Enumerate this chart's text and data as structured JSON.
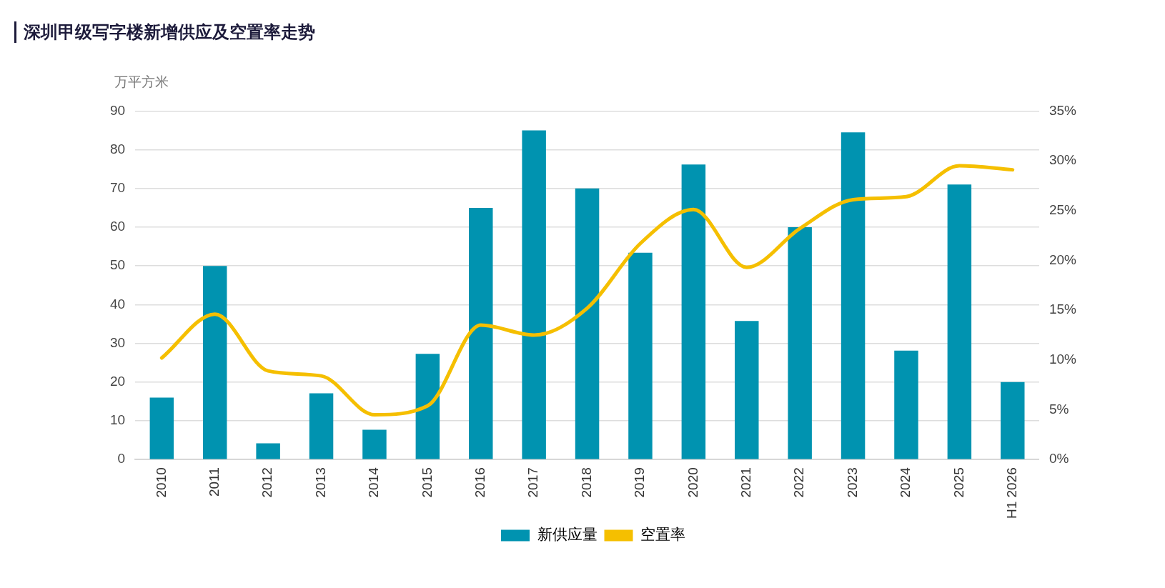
{
  "chart_data": {
    "type": "bar",
    "title": "深圳甲级写字楼新增供应及空置率走势",
    "ylabel": "万平方米",
    "categories": [
      "2010",
      "2011",
      "2012",
      "2013",
      "2014",
      "2015",
      "2016",
      "2017",
      "2018",
      "2019",
      "2020",
      "2021",
      "2022",
      "2023",
      "2024",
      "2025",
      "H1 2026"
    ],
    "series": [
      {
        "name": "新供应量",
        "color": "#0093b0",
        "values": [
          16,
          50,
          4.2,
          17.1,
          7.7,
          27.3,
          65,
          85,
          70,
          53.4,
          76.2,
          35.8,
          60,
          84.5,
          28.1,
          71,
          20
        ]
      },
      {
        "name": "空置率",
        "type": "line",
        "axis": "y2",
        "color": "#f5bf00",
        "values": [
          10.2,
          14.6,
          8.9,
          8.4,
          4.5,
          5.4,
          13.5,
          12.5,
          15.2,
          21.7,
          25.1,
          19.3,
          23.2,
          26.1,
          26.4,
          29.5,
          29.1
        ]
      }
    ],
    "ylim": [
      0,
      90
    ],
    "yticks": [
      0,
      10,
      20,
      30,
      40,
      50,
      60,
      70,
      80,
      90
    ],
    "y2lim": [
      0,
      35
    ],
    "y2ticks": [
      {
        "value": 0,
        "label": "0%"
      },
      {
        "value": 5,
        "label": "5%"
      },
      {
        "value": 10,
        "label": "10%"
      },
      {
        "value": 15,
        "label": "15%"
      },
      {
        "value": 20,
        "label": "20%"
      },
      {
        "value": 25,
        "label": "25%"
      },
      {
        "value": 30,
        "label": "30%"
      },
      {
        "value": 35,
        "label": "35%"
      }
    ],
    "grid": "y",
    "legend": "bottom",
    "marker": "none",
    "line_style": "solid"
  }
}
